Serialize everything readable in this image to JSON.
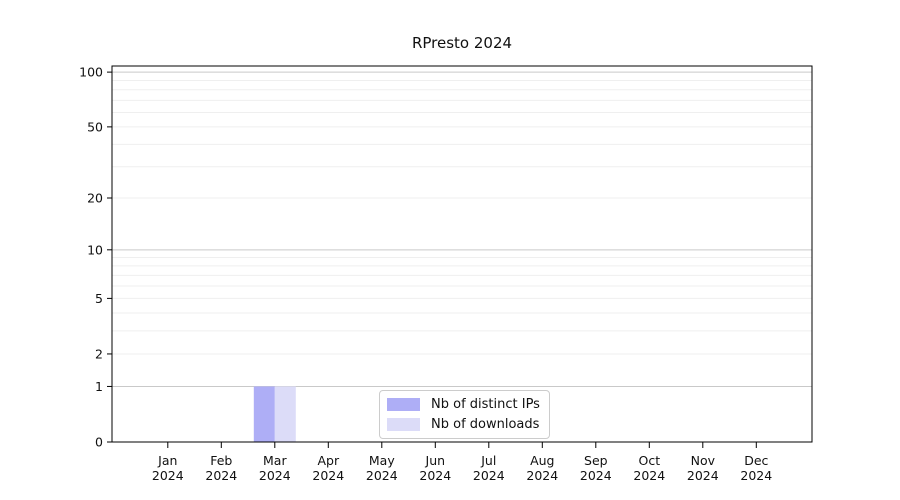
{
  "figure": {
    "title": "RPresto 2024"
  },
  "legend": {
    "items": [
      {
        "label": "Nb of distinct IPs",
        "color": "#aeaef6"
      },
      {
        "label": "Nb of downloads",
        "color": "#dcdcf8"
      }
    ]
  },
  "chart_data": {
    "type": "bar",
    "title": "RPresto 2024",
    "categories": [
      "Jan",
      "Feb",
      "Mar",
      "Apr",
      "May",
      "Jun",
      "Jul",
      "Aug",
      "Sep",
      "Oct",
      "Nov",
      "Dec"
    ],
    "category_year": "2024",
    "series": [
      {
        "name": "Nb of distinct IPs",
        "color": "#aeaef6",
        "values": [
          0,
          0,
          1,
          0,
          0,
          0,
          0,
          0,
          0,
          0,
          0,
          0
        ]
      },
      {
        "name": "Nb of downloads",
        "color": "#dcdcf8",
        "values": [
          0,
          0,
          1,
          0,
          0,
          0,
          0,
          0,
          0,
          0,
          0,
          0
        ]
      }
    ],
    "yticks": [
      0,
      1,
      2,
      5,
      10,
      20,
      50,
      100
    ],
    "yscale": "log1p",
    "ylim": [
      0,
      108
    ],
    "xlabel": "",
    "ylabel": "",
    "grid": "horizontal",
    "legend_position": "lower center",
    "colors": {
      "spine": "#000000",
      "grid_decade": "#c9c9c9",
      "grid_minor": "#efefef",
      "tick_text": "#111111"
    }
  }
}
